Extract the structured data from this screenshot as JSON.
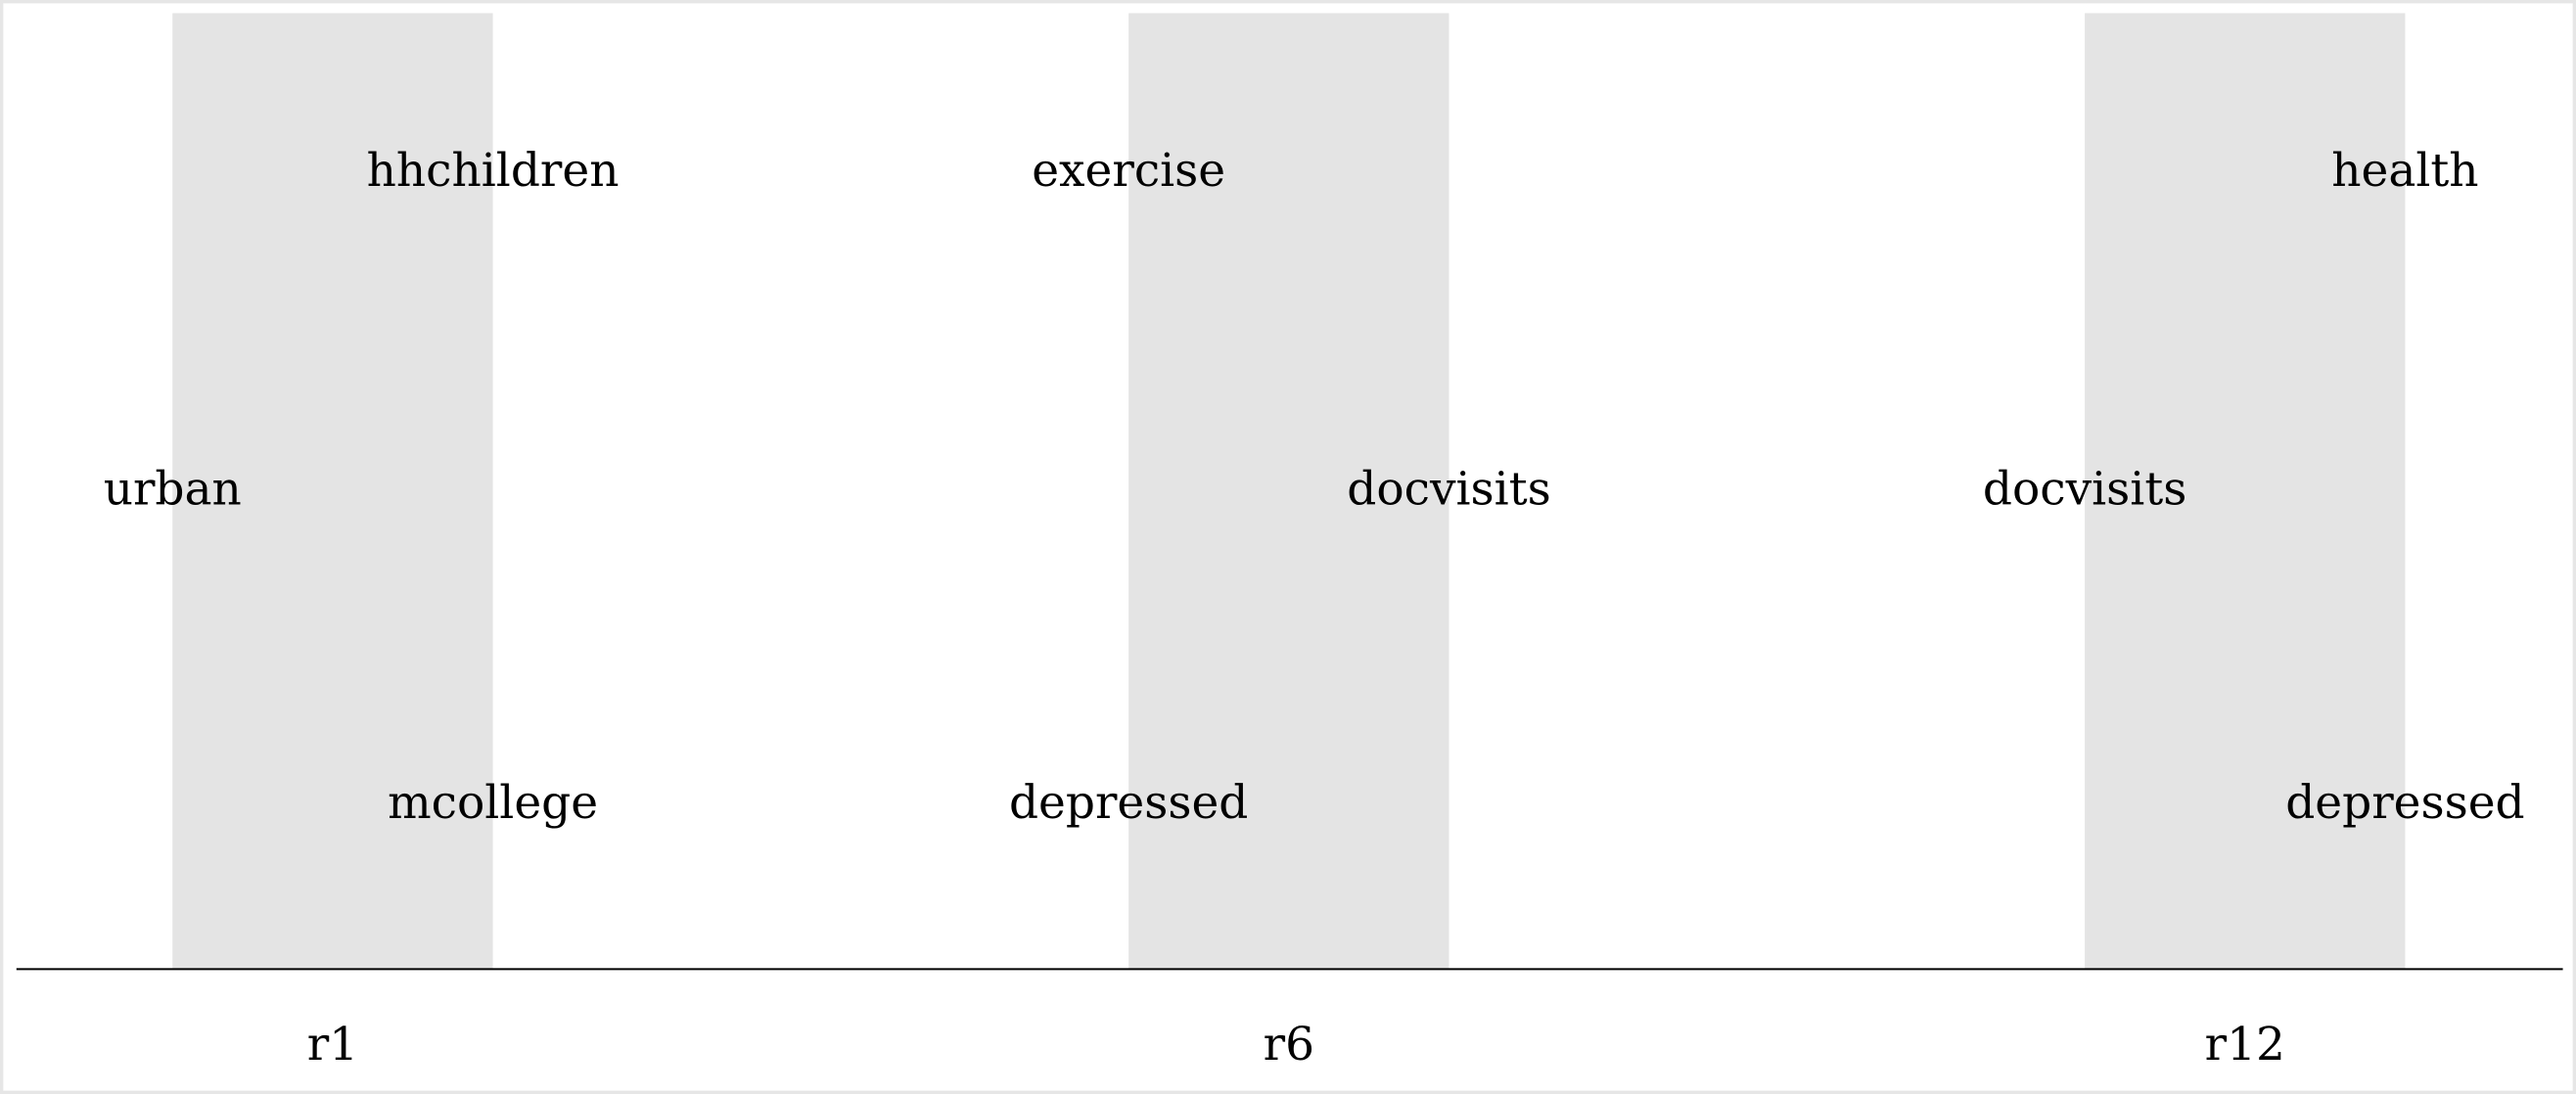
{
  "columns": [
    {
      "label": "r1",
      "items": [
        "hhchildren",
        "urban",
        "mcollege"
      ]
    },
    {
      "label": "r6",
      "items": [
        "exercise",
        "docvisits",
        "depressed"
      ]
    },
    {
      "label": "r12",
      "items": [
        "health",
        "docvisits",
        "depressed"
      ]
    }
  ]
}
